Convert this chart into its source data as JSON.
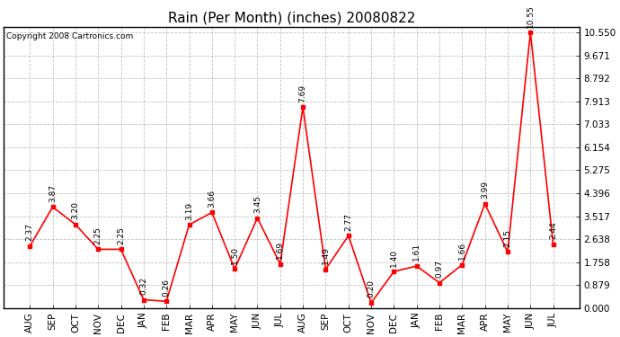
{
  "title": "Rain (Per Month) (inches) 20080822",
  "copyright": "Copyright 2008 Cartronics.com",
  "months": [
    "AUG",
    "SEP",
    "OCT",
    "NOV",
    "DEC",
    "JAN",
    "FEB",
    "MAR",
    "APR",
    "MAY",
    "JUN",
    "JUL",
    "AUG",
    "SEP",
    "OCT",
    "NOV",
    "DEC",
    "JAN",
    "FEB",
    "MAR",
    "APR",
    "MAY",
    "JUN",
    "JUL"
  ],
  "values": [
    2.37,
    3.87,
    3.2,
    2.25,
    2.25,
    0.32,
    0.26,
    3.19,
    3.66,
    1.5,
    3.45,
    1.69,
    7.69,
    1.49,
    2.77,
    0.2,
    1.4,
    1.61,
    0.97,
    1.66,
    3.99,
    2.15,
    10.55,
    2.44
  ],
  "line_color": "#ff0000",
  "marker_color": "#ff0000",
  "bg_color": "#ffffff",
  "grid_color": "#bbbbbb",
  "ylim": [
    0.0,
    10.55
  ],
  "yticks": [
    0.0,
    0.879,
    1.758,
    2.638,
    3.517,
    4.396,
    5.275,
    6.154,
    7.033,
    7.913,
    8.792,
    9.671,
    10.55
  ],
  "title_fontsize": 11,
  "label_fontsize": 6.5,
  "tick_fontsize": 7.5,
  "copyright_fontsize": 6.5
}
